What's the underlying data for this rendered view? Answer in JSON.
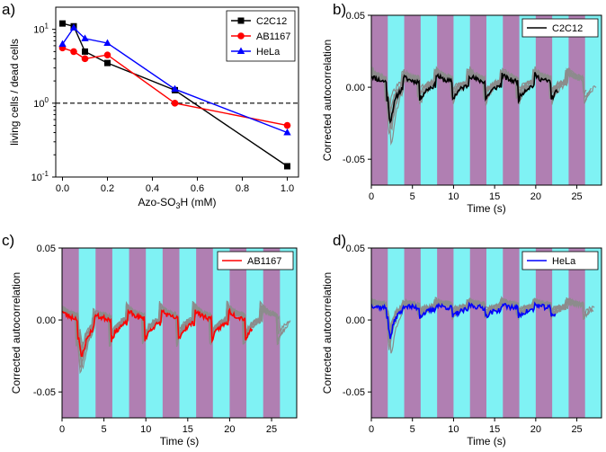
{
  "chart_data": [
    {
      "id": "a",
      "panel_label": "a)",
      "type": "line",
      "yscale": "log",
      "xlabel_main": "Azo-SO",
      "xlabel_sub": "3",
      "xlabel_tail": "H (mM)",
      "ylabel": "living cells / dead cells",
      "xlim": [
        -0.03,
        1.05
      ],
      "ylim_exp": [
        -1,
        1.3
      ],
      "xticks": [
        0.0,
        0.2,
        0.4,
        0.6,
        0.8,
        1.0
      ],
      "xtick_labels": [
        "0.0",
        "0.2",
        "0.4",
        "0.6",
        "0.8",
        "1.0"
      ],
      "yticks": [
        {
          "exp": -1,
          "base": "10",
          "sup": "-1"
        },
        {
          "exp": 0,
          "base": "10",
          "sup": "0"
        },
        {
          "exp": 1,
          "base": "10",
          "sup": "1"
        }
      ],
      "reference_line": 1.0,
      "legend_position": "top-right",
      "series": [
        {
          "name": "C2C12",
          "color": "#000000",
          "marker": "square",
          "x": [
            0.0,
            0.05,
            0.1,
            0.2,
            0.5,
            1.0
          ],
          "y": [
            12.0,
            11.0,
            5.0,
            3.5,
            1.5,
            0.14
          ]
        },
        {
          "name": "AB1167",
          "color": "#ff0000",
          "marker": "circle",
          "x": [
            0.0,
            0.05,
            0.1,
            0.2,
            0.5,
            1.0
          ],
          "y": [
            5.6,
            5.0,
            4.0,
            4.5,
            1.0,
            0.5
          ]
        },
        {
          "name": "HeLa",
          "color": "#0000ff",
          "marker": "triangle",
          "x": [
            0.0,
            0.05,
            0.1,
            0.2,
            0.5,
            1.0
          ],
          "y": [
            6.3,
            10.5,
            7.5,
            6.5,
            1.55,
            0.4
          ]
        }
      ]
    },
    {
      "id": "b",
      "panel_label": "b)",
      "type": "line",
      "xlabel": "Time (s)",
      "ylabel": "Corrected autocorrelation",
      "xlim": [
        0,
        28
      ],
      "ylim": [
        -0.068,
        0.05
      ],
      "xticks": [
        0,
        5,
        10,
        15,
        20,
        25
      ],
      "xtick_labels": [
        "0",
        "5",
        "10",
        "15",
        "20",
        "25"
      ],
      "yticks": [
        -0.05,
        0.0,
        0.05
      ],
      "ytick_labels": [
        "-0.05",
        "0.00",
        "0.05"
      ],
      "stripe_period_s": 4.0,
      "stripe_cyan_start_s": 2.0,
      "stripe_cyan_width_s": 2.0,
      "stripe_colors": {
        "purple": "#b07fb2",
        "cyan": "#7ff2f4"
      },
      "legend_position": "top-right",
      "series": [
        {
          "name": "C2C12",
          "color": "#000000",
          "baseline": 0.003,
          "drop": -0.033,
          "amp": 0.012,
          "decay": 0.65,
          "x_end": 22.8,
          "seed": 11
        }
      ],
      "background_traces": {
        "count": 9,
        "color": "#8c8c8c",
        "x_end": 27.5
      }
    },
    {
      "id": "c",
      "panel_label": "c)",
      "type": "line",
      "xlabel": "Time (s)",
      "ylabel": "Corrected autocorrelation",
      "xlim": [
        0,
        28
      ],
      "ylim": [
        -0.068,
        0.05
      ],
      "xticks": [
        0,
        5,
        10,
        15,
        20,
        25
      ],
      "xtick_labels": [
        "0",
        "5",
        "10",
        "15",
        "20",
        "25"
      ],
      "yticks": [
        -0.05,
        0.0,
        0.05
      ],
      "ytick_labels": [
        "-0.05",
        "0.00",
        "0.05"
      ],
      "stripe_period_s": 4.0,
      "stripe_cyan_start_s": 2.0,
      "stripe_cyan_width_s": 2.0,
      "stripe_colors": {
        "purple": "#b07fb2",
        "cyan": "#7ff2f4"
      },
      "legend_position": "top-right",
      "series": [
        {
          "name": "AB1167",
          "color": "#ff0000",
          "baseline": 0.0,
          "drop": -0.026,
          "amp": 0.014,
          "decay": 0.9,
          "x_end": 22.8,
          "seed": 23
        }
      ],
      "background_traces": {
        "count": 9,
        "color": "#8c8c8c",
        "x_end": 27.5
      }
    },
    {
      "id": "d",
      "panel_label": "d)",
      "type": "line",
      "xlabel": "Time (s)",
      "ylabel": "Corrected autocorrelation",
      "xlim": [
        0,
        28
      ],
      "ylim": [
        -0.068,
        0.05
      ],
      "xticks": [
        0,
        5,
        10,
        15,
        20,
        25
      ],
      "xtick_labels": [
        "0",
        "5",
        "10",
        "15",
        "20",
        "25"
      ],
      "yticks": [
        -0.05,
        0.0,
        0.05
      ],
      "ytick_labels": [
        "-0.05",
        "0.00",
        "0.05"
      ],
      "stripe_period_s": 4.0,
      "stripe_cyan_start_s": 2.0,
      "stripe_cyan_width_s": 2.0,
      "stripe_colors": {
        "purple": "#b07fb2",
        "cyan": "#7ff2f4"
      },
      "legend_position": "top-right",
      "series": [
        {
          "name": "HeLa",
          "color": "#0000ff",
          "baseline": 0.008,
          "drop": -0.034,
          "amp": 0.006,
          "decay": 0.5,
          "x_end": 22.5,
          "seed": 37
        }
      ],
      "background_traces": {
        "count": 9,
        "color": "#8c8c8c",
        "x_end": 27.5
      }
    }
  ]
}
